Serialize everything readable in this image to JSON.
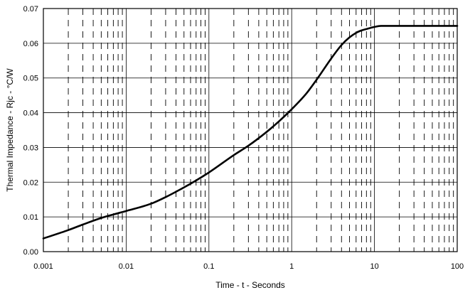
{
  "chart_data": {
    "type": "line",
    "title": "",
    "xlabel": "Time - t - Seconds",
    "ylabel": "Thermal Impedance - Rjc - °C/W",
    "x_scale": "log",
    "xlim": [
      0.001,
      100
    ],
    "ylim": [
      0,
      0.07
    ],
    "grid": true,
    "x_ticks": [
      {
        "value": 0.001,
        "label": "0.001"
      },
      {
        "value": 0.01,
        "label": "0.01"
      },
      {
        "value": 0.1,
        "label": "0.1"
      },
      {
        "value": 1,
        "label": "1"
      },
      {
        "value": 10,
        "label": "10"
      },
      {
        "value": 100,
        "label": "100"
      }
    ],
    "y_ticks": [
      {
        "value": 0,
        "label": "0.00"
      },
      {
        "value": 0.01,
        "label": "0.01"
      },
      {
        "value": 0.02,
        "label": "0.02"
      },
      {
        "value": 0.03,
        "label": "0.03"
      },
      {
        "value": 0.04,
        "label": "0.04"
      },
      {
        "value": 0.05,
        "label": "0.05"
      },
      {
        "value": 0.06,
        "label": "0.06"
      },
      {
        "value": 0.07,
        "label": "0.07"
      }
    ],
    "series": [
      {
        "color": "#000000",
        "x": [
          0.001,
          0.002,
          0.003,
          0.005,
          0.007,
          0.01,
          0.02,
          0.03,
          0.05,
          0.07,
          0.1,
          0.2,
          0.3,
          0.5,
          0.7,
          1,
          1.5,
          2,
          3,
          4,
          5,
          6,
          7,
          8,
          10,
          12,
          15,
          20,
          50,
          100
        ],
        "y": [
          0.0038,
          0.0062,
          0.0078,
          0.0097,
          0.0107,
          0.0117,
          0.0138,
          0.0157,
          0.0185,
          0.0205,
          0.0228,
          0.0278,
          0.0305,
          0.0345,
          0.0375,
          0.041,
          0.0455,
          0.0495,
          0.0556,
          0.0595,
          0.0617,
          0.063,
          0.0637,
          0.0641,
          0.0647,
          0.065,
          0.065,
          0.065,
          0.065,
          0.065
        ]
      }
    ]
  }
}
